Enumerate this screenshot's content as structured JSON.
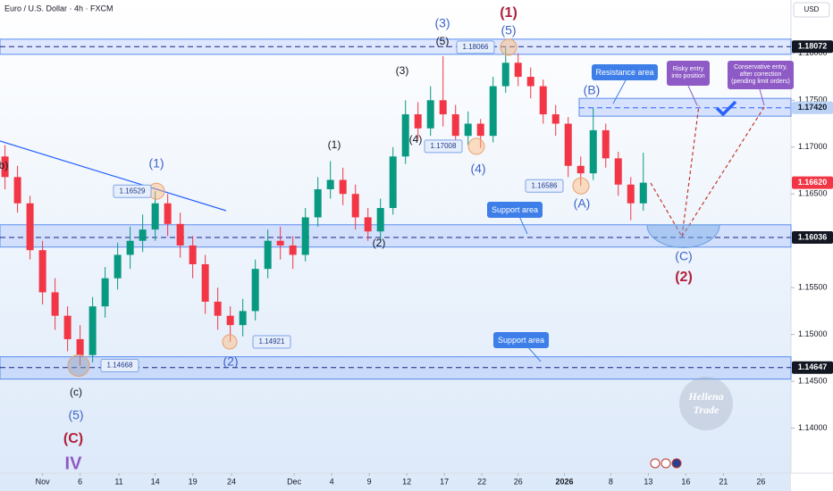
{
  "chart_data": {
    "type": "candlestick",
    "title": "Euro / U.S. Dollar · 4h · FXCM",
    "currency": "USD",
    "up_color": "#089981",
    "down_color": "#f23645",
    "x": [
      -3,
      -2,
      -1,
      0,
      1,
      2,
      3,
      4,
      5,
      6,
      7,
      8,
      9,
      10,
      11,
      12,
      13,
      14,
      15,
      16,
      17,
      18,
      19,
      20,
      21,
      22,
      23,
      24,
      25,
      26,
      27,
      28,
      29,
      30,
      31,
      32,
      33,
      34,
      35,
      36,
      37,
      38,
      39,
      40,
      41,
      42,
      43,
      44,
      45,
      46,
      47,
      48
    ],
    "open": [
      1.169,
      1.1668,
      1.164,
      1.159,
      1.1545,
      1.152,
      1.1495,
      1.1478,
      1.153,
      1.156,
      1.1585,
      1.16,
      1.1612,
      1.164,
      1.1618,
      1.1595,
      1.1575,
      1.1535,
      1.152,
      1.151,
      1.1525,
      1.157,
      1.16,
      1.1595,
      1.1585,
      1.1625,
      1.1655,
      1.1665,
      1.165,
      1.1625,
      1.161,
      1.1635,
      1.169,
      1.1735,
      1.172,
      1.175,
      1.1735,
      1.1712,
      1.1725,
      1.1712,
      1.1765,
      1.179,
      1.1775,
      1.1765,
      1.1735,
      1.1725,
      1.168,
      1.1672,
      1.1718,
      1.1688,
      1.166,
      1.164
    ],
    "high": [
      1.1702,
      1.168,
      1.1648,
      1.16,
      1.156,
      1.153,
      1.151,
      1.154,
      1.1572,
      1.1598,
      1.1615,
      1.1628,
      1.16529,
      1.165,
      1.163,
      1.1605,
      1.1585,
      1.155,
      1.153,
      1.1538,
      1.158,
      1.1612,
      1.1615,
      1.1605,
      1.1635,
      1.1668,
      1.1685,
      1.1678,
      1.166,
      1.1635,
      1.1645,
      1.17,
      1.175,
      1.1748,
      1.1765,
      1.1797,
      1.1745,
      1.1738,
      1.173,
      1.1775,
      1.18066,
      1.18,
      1.1785,
      1.1772,
      1.1745,
      1.1732,
      1.169,
      1.1742,
      1.1725,
      1.1695,
      1.1668,
      1.1694
    ],
    "low": [
      1.1655,
      1.163,
      1.158,
      1.1532,
      1.1505,
      1.1482,
      1.14668,
      1.147,
      1.1518,
      1.1548,
      1.157,
      1.1588,
      1.16,
      1.1605,
      1.1582,
      1.156,
      1.1522,
      1.1505,
      1.14921,
      1.1498,
      1.1515,
      1.156,
      1.158,
      1.157,
      1.1578,
      1.1615,
      1.1645,
      1.1638,
      1.1612,
      1.16,
      1.16,
      1.1628,
      1.1682,
      1.1708,
      1.1712,
      1.1722,
      1.17,
      1.1702,
      1.1699,
      1.1705,
      1.1758,
      1.1765,
      1.1752,
      1.1725,
      1.1712,
      1.1668,
      1.16586,
      1.1665,
      1.1678,
      1.1648,
      1.1622,
      1.1632
    ],
    "close": [
      1.1668,
      1.164,
      1.159,
      1.1545,
      1.152,
      1.1495,
      1.1478,
      1.153,
      1.156,
      1.1585,
      1.16,
      1.1612,
      1.164,
      1.1618,
      1.1595,
      1.1575,
      1.1535,
      1.152,
      1.151,
      1.1525,
      1.157,
      1.16,
      1.1595,
      1.1585,
      1.1625,
      1.1655,
      1.1665,
      1.165,
      1.1625,
      1.161,
      1.1635,
      1.169,
      1.1735,
      1.172,
      1.175,
      1.1735,
      1.1712,
      1.1725,
      1.1712,
      1.1765,
      1.179,
      1.1775,
      1.1765,
      1.1735,
      1.1725,
      1.168,
      1.1672,
      1.1718,
      1.1688,
      1.166,
      1.164,
      1.1662
    ],
    "xlim": [
      -3.4,
      59.8
    ],
    "ylim": [
      1.1352,
      1.1857
    ],
    "xticks": [
      {
        "value": 0,
        "label": "Nov"
      },
      {
        "value": 3,
        "label": "6"
      },
      {
        "value": 6.1,
        "label": "11"
      },
      {
        "value": 9,
        "label": "14"
      },
      {
        "value": 12,
        "label": "19"
      },
      {
        "value": 15.1,
        "label": "24"
      },
      {
        "value": 20.1,
        "label": "Dec"
      },
      {
        "value": 23.1,
        "label": "4"
      },
      {
        "value": 26.1,
        "label": "9"
      },
      {
        "value": 29.1,
        "label": "12"
      },
      {
        "value": 32.1,
        "label": "17"
      },
      {
        "value": 35.1,
        "label": "22"
      },
      {
        "value": 38,
        "label": "26"
      },
      {
        "value": 41.7,
        "label": "2026"
      },
      {
        "value": 45.4,
        "label": "8"
      },
      {
        "value": 48.4,
        "label": "13"
      },
      {
        "value": 51.4,
        "label": "16"
      },
      {
        "value": 54.4,
        "label": "21"
      },
      {
        "value": 57.4,
        "label": "26"
      }
    ],
    "yticks": [
      {
        "value": 1.14,
        "label": "1.14000"
      },
      {
        "value": 1.145,
        "label": "1.14500"
      },
      {
        "value": 1.15,
        "label": "1.15000"
      },
      {
        "value": 1.155,
        "label": "1.15500"
      },
      {
        "value": 1.165,
        "label": "1.16500"
      },
      {
        "value": 1.17,
        "label": "1.17000"
      },
      {
        "value": 1.175,
        "label": "1.17500"
      },
      {
        "value": 1.18,
        "label": "1.18000"
      }
    ],
    "levels": [
      {
        "value": 1.18072,
        "label": "1.18072",
        "color": "#131722"
      },
      {
        "value": 1.1742,
        "label": "1.17420",
        "color": "#bcd3f5"
      },
      {
        "value": 1.1662,
        "label": "1.16620",
        "color": "#f23645"
      },
      {
        "value": 1.16036,
        "label": "1.16036",
        "color": "#131722"
      },
      {
        "value": 1.14647,
        "label": "1.14647",
        "color": "#131722"
      }
    ],
    "bands": [
      [
        1.18152,
        1.1799
      ],
      [
        1.16171,
        1.15933
      ],
      [
        1.14762,
        1.14524
      ]
    ],
    "resistance_zone": [
      1.1752,
      1.1733
    ],
    "price_tags": [
      1.16529,
      1.14921,
      1.14668,
      1.17008,
      1.18066,
      1.16586
    ],
    "wave_labels": [
      "b)",
      "(1)",
      "(c)",
      "(5)",
      "(C)",
      "IV",
      "(2)",
      "(1)",
      "(2)",
      "(3)",
      "(4)",
      "(5)",
      "(3)",
      "(4)",
      "(1)",
      "(5)",
      "(B)",
      "(A)",
      "(C)",
      "(2)"
    ],
    "callouts": [
      "Support area",
      "Support area",
      "Resistance area",
      "Risky entry into position",
      "Conservative entry, after correction (pending limit orders)"
    ],
    "watermark": "Hellena Trade"
  }
}
